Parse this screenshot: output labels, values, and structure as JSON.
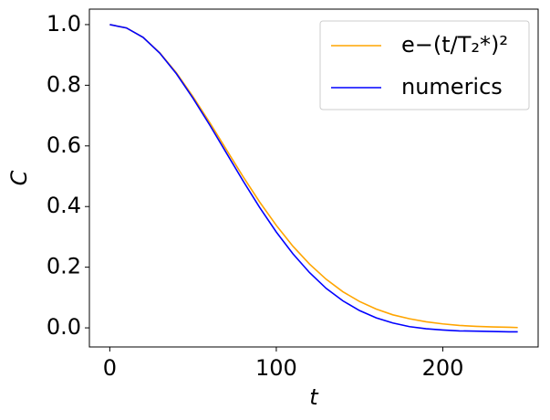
{
  "chart_data": {
    "type": "line",
    "xlabel": "t",
    "ylabel": "C",
    "x": [
      0,
      10,
      20,
      30,
      40,
      50,
      60,
      70,
      80,
      90,
      100,
      110,
      120,
      130,
      140,
      150,
      160,
      170,
      180,
      190,
      200,
      210,
      220,
      230,
      240,
      245
    ],
    "series": [
      {
        "name": "e−(t/T₂*)²",
        "color": "#ffa500",
        "values": [
          1,
          0.989,
          0.958,
          0.907,
          0.841,
          0.762,
          0.677,
          0.588,
          0.499,
          0.415,
          0.338,
          0.269,
          0.21,
          0.16,
          0.119,
          0.087,
          0.062,
          0.043,
          0.03,
          0.02,
          0.013,
          0.008,
          0.005,
          0.003,
          0.002,
          0.001
        ]
      },
      {
        "name": "numerics",
        "color": "#0000ff",
        "values": [
          1,
          0.989,
          0.958,
          0.906,
          0.838,
          0.757,
          0.669,
          0.577,
          0.485,
          0.397,
          0.316,
          0.244,
          0.182,
          0.13,
          0.089,
          0.057,
          0.033,
          0.016,
          0.004,
          -0.003,
          -0.007,
          -0.01,
          -0.011,
          -0.012,
          -0.013,
          -0.013
        ]
      }
    ],
    "xlim": [
      -12.25,
      257.25
    ],
    "xticks": [
      0,
      100,
      200
    ],
    "ylim": [
      -0.063,
      1.051
    ],
    "yticks": [
      {
        "value": 0,
        "label": "0.0"
      },
      {
        "value": 0.2,
        "label": "0.2"
      },
      {
        "value": 0.4,
        "label": "0.4"
      },
      {
        "value": 0.6,
        "label": "0.6"
      },
      {
        "value": 0.8,
        "label": "0.8"
      },
      {
        "value": 1,
        "label": "1.0"
      }
    ],
    "legend": "upper right",
    "grid": false
  }
}
